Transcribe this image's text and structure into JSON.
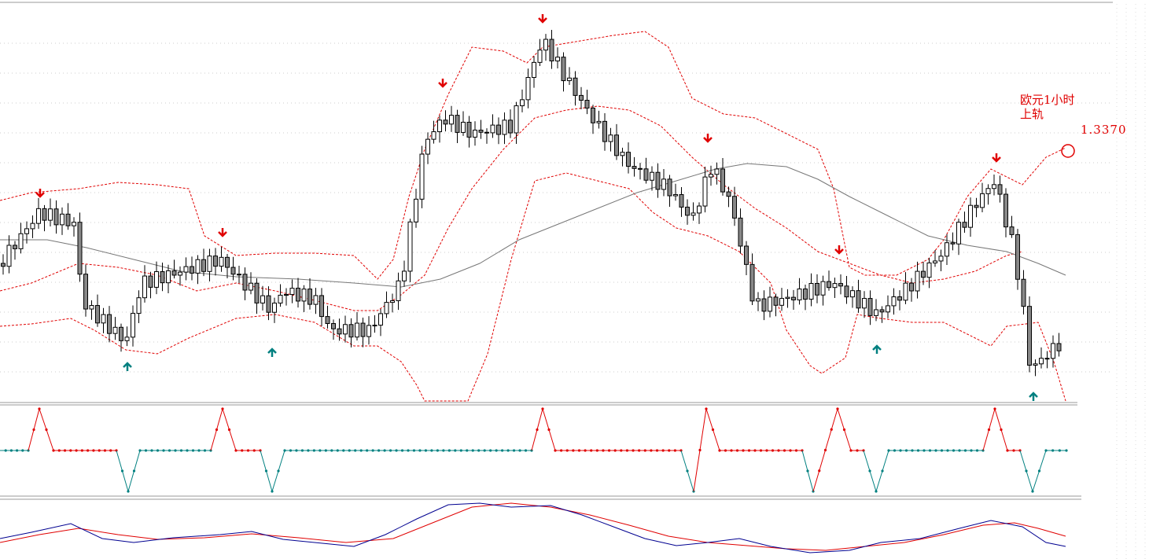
{
  "annotation": {
    "title_line1": "欧元1小时",
    "title_line2": "上轨",
    "price": "1.3370"
  }
}
